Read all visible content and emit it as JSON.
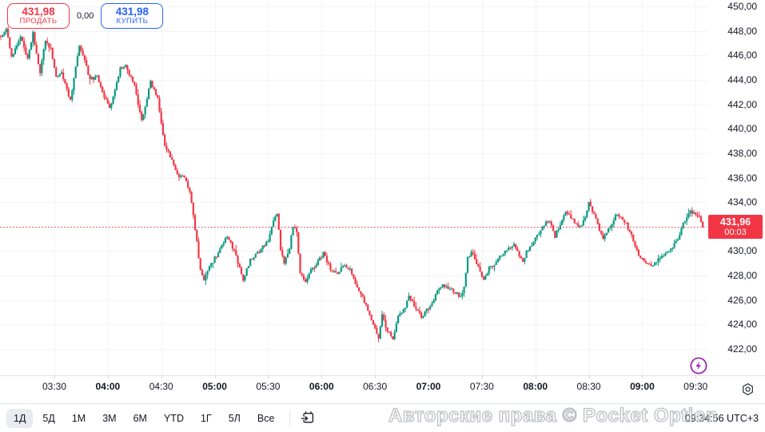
{
  "trade_widget": {
    "sell_price": "431,98",
    "sell_label": "ПРОДАТЬ",
    "spread": "0,00",
    "buy_price": "431,98",
    "buy_label": "КУПИТЬ"
  },
  "price_axis": {
    "current_price_label": "431,96",
    "countdown": "00:03"
  },
  "toolbar": {
    "ranges": [
      "1Д",
      "5Д",
      "1М",
      "3М",
      "6М",
      "YTD",
      "1Г",
      "5Л",
      "Все"
    ],
    "active_range": "1Д",
    "goto_date_icon": "calendar-goto-date",
    "clock": "09:34:56 UTC+3"
  },
  "watermark": "Авторские права © Pocket Option",
  "colors": {
    "up": "#089981",
    "down": "#f23645",
    "accent_blue": "#2962ff",
    "badge": "#f23645",
    "lightning": "#9c27b0",
    "grid": "#f0f3fa",
    "text": "#131722",
    "border": "#e0e3eb",
    "active_range_bg": "#e9ebf0"
  },
  "chart_data": {
    "type": "candlestick",
    "interval_minutes": 1,
    "session_start": "03:00",
    "current_price": 431.96,
    "ylim": [
      421.5,
      450.3
    ],
    "grid": true,
    "y_ticks": [
      {
        "label": "450,00",
        "value": 450
      },
      {
        "label": "448,00",
        "value": 448
      },
      {
        "label": "446,00",
        "value": 446
      },
      {
        "label": "444,00",
        "value": 444
      },
      {
        "label": "442,00",
        "value": 442
      },
      {
        "label": "440,00",
        "value": 440
      },
      {
        "label": "438,00",
        "value": 438
      },
      {
        "label": "436,00",
        "value": 436
      },
      {
        "label": "434,00",
        "value": 434
      },
      {
        "label": "430,00",
        "value": 430
      },
      {
        "label": "428,00",
        "value": 428
      },
      {
        "label": "426,00",
        "value": 426
      },
      {
        "label": "424,00",
        "value": 424
      },
      {
        "label": "422,00",
        "value": 422
      }
    ],
    "x_ticks": [
      {
        "label": "03:30",
        "bold": false
      },
      {
        "label": "04:00",
        "bold": true
      },
      {
        "label": "04:30",
        "bold": false
      },
      {
        "label": "05:00",
        "bold": true
      },
      {
        "label": "05:30",
        "bold": false
      },
      {
        "label": "06:00",
        "bold": true
      },
      {
        "label": "06:30",
        "bold": false
      },
      {
        "label": "07:00",
        "bold": true
      },
      {
        "label": "07:30",
        "bold": false
      },
      {
        "label": "08:00",
        "bold": true
      },
      {
        "label": "08:30",
        "bold": false
      },
      {
        "label": "09:00",
        "bold": true
      },
      {
        "label": "09:30",
        "bold": false
      }
    ],
    "price_path": [
      [
        1,
        447.6
      ],
      [
        3,
        448.1
      ],
      [
        6,
        445.9
      ],
      [
        11,
        447.5
      ],
      [
        15,
        445.7
      ],
      [
        18,
        447.8
      ],
      [
        22,
        444.6
      ],
      [
        25,
        447.3
      ],
      [
        28,
        446.5
      ],
      [
        31,
        444.2
      ],
      [
        34,
        444.6
      ],
      [
        39,
        442.3
      ],
      [
        44,
        446.7
      ],
      [
        47,
        445.6
      ],
      [
        50,
        444.0
      ],
      [
        54,
        444.3
      ],
      [
        57,
        442.9
      ],
      [
        61,
        441.6
      ],
      [
        67,
        444.9
      ],
      [
        70,
        445.1
      ],
      [
        75,
        443.5
      ],
      [
        79,
        440.6
      ],
      [
        84,
        443.8
      ],
      [
        88,
        442.5
      ],
      [
        92,
        438.6
      ],
      [
        96,
        437.5
      ],
      [
        99,
        436.2
      ],
      [
        103,
        436.0
      ],
      [
        106,
        434.9
      ],
      [
        109,
        431.8
      ],
      [
        112,
        428.4
      ],
      [
        114,
        427.7
      ],
      [
        118,
        428.9
      ],
      [
        120,
        429.4
      ],
      [
        124,
        430.4
      ],
      [
        127,
        431.3
      ],
      [
        131,
        430.0
      ],
      [
        136,
        427.6
      ],
      [
        140,
        429.3
      ],
      [
        144,
        429.8
      ],
      [
        147,
        430.3
      ],
      [
        150,
        430.9
      ],
      [
        153,
        432.6
      ],
      [
        155,
        433.1
      ],
      [
        157,
        430.2
      ],
      [
        159,
        428.9
      ],
      [
        162,
        430.3
      ],
      [
        164,
        432.0
      ],
      [
        166,
        431.6
      ],
      [
        168,
        428.2
      ],
      [
        171,
        427.6
      ],
      [
        174,
        428.4
      ],
      [
        177,
        428.9
      ],
      [
        181,
        429.8
      ],
      [
        185,
        428.6
      ],
      [
        189,
        428.0
      ],
      [
        192,
        428.8
      ],
      [
        196,
        428.6
      ],
      [
        199,
        427.3
      ],
      [
        203,
        426.3
      ],
      [
        206,
        425.1
      ],
      [
        210,
        423.6
      ],
      [
        212,
        422.9
      ],
      [
        214,
        424.8
      ],
      [
        217,
        423.4
      ],
      [
        220,
        422.9
      ],
      [
        223,
        424.7
      ],
      [
        227,
        425.5
      ],
      [
        229,
        426.2
      ],
      [
        233,
        425.3
      ],
      [
        236,
        424.6
      ],
      [
        239,
        425.2
      ],
      [
        242,
        425.6
      ],
      [
        245,
        426.9
      ],
      [
        248,
        427.3
      ],
      [
        251,
        427.0
      ],
      [
        255,
        426.6
      ],
      [
        258,
        426.3
      ],
      [
        260,
        427.0
      ],
      [
        262,
        429.4
      ],
      [
        264,
        429.9
      ],
      [
        266,
        429.4
      ],
      [
        268,
        428.6
      ],
      [
        271,
        427.7
      ],
      [
        274,
        428.6
      ],
      [
        277,
        429.0
      ],
      [
        281,
        429.7
      ],
      [
        285,
        430.2
      ],
      [
        288,
        430.6
      ],
      [
        290,
        429.9
      ],
      [
        293,
        429.1
      ],
      [
        295,
        429.9
      ],
      [
        298,
        430.5
      ],
      [
        302,
        431.5
      ],
      [
        305,
        432.2
      ],
      [
        308,
        432.5
      ],
      [
        311,
        431.2
      ],
      [
        314,
        432.2
      ],
      [
        317,
        433.2
      ],
      [
        320,
        432.8
      ],
      [
        322,
        432.4
      ],
      [
        325,
        431.9
      ],
      [
        328,
        432.7
      ],
      [
        330,
        434.0
      ],
      [
        332,
        433.3
      ],
      [
        335,
        432.2
      ],
      [
        338,
        430.9
      ],
      [
        340,
        431.5
      ],
      [
        343,
        432.3
      ],
      [
        346,
        433.1
      ],
      [
        348,
        432.8
      ],
      [
        351,
        432.2
      ],
      [
        354,
        431.2
      ],
      [
        356,
        430.3
      ],
      [
        359,
        429.5
      ],
      [
        362,
        429.0
      ],
      [
        365,
        428.8
      ],
      [
        368,
        429.2
      ],
      [
        371,
        429.5
      ],
      [
        374,
        429.9
      ],
      [
        377,
        430.4
      ],
      [
        380,
        431.0
      ],
      [
        382,
        431.9
      ],
      [
        385,
        432.8
      ],
      [
        387,
        433.3
      ],
      [
        390,
        433.0
      ],
      [
        392,
        432.8
      ],
      [
        394,
        431.96
      ]
    ]
  }
}
